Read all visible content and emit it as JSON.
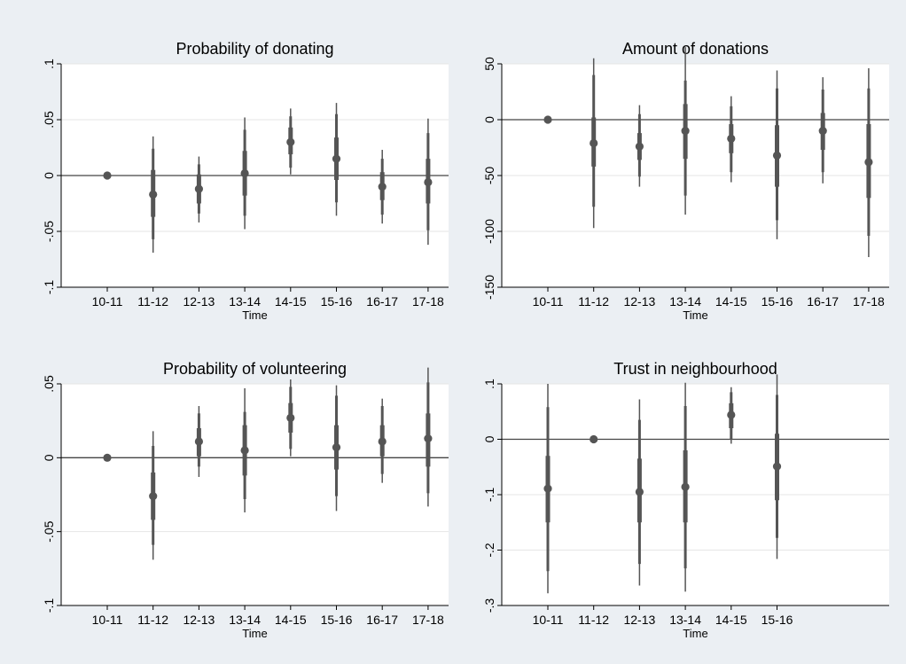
{
  "chart_data": [
    {
      "type": "scatter",
      "title": "Probability of donating",
      "xlabel": "Time",
      "ylabel": "",
      "categories": [
        "10-11",
        "11-12",
        "12-13",
        "13-14",
        "14-15",
        "15-16",
        "16-17",
        "17-18"
      ],
      "ylim": [
        -0.1,
        0.1
      ],
      "yticks": [
        -0.1,
        -0.05,
        0,
        0.05,
        0.1
      ],
      "ytick_labels": [
        "-.1",
        "-.05",
        "0",
        ".05",
        ".1"
      ],
      "grid": true,
      "reference_line": 0,
      "points": [
        {
          "x": "10-11",
          "estimate": 0,
          "ci_inner": [
            0,
            0
          ],
          "ci_mid": [
            0,
            0
          ],
          "ci_outer": [
            0,
            0
          ]
        },
        {
          "x": "11-12",
          "estimate": -0.017,
          "ci_inner": [
            -0.037,
            0.005
          ],
          "ci_mid": [
            -0.057,
            0.024
          ],
          "ci_outer": [
            -0.069,
            0.035
          ]
        },
        {
          "x": "12-13",
          "estimate": -0.012,
          "ci_inner": [
            -0.025,
            0.001
          ],
          "ci_mid": [
            -0.034,
            0.01
          ],
          "ci_outer": [
            -0.042,
            0.017
          ]
        },
        {
          "x": "13-14",
          "estimate": 0.002,
          "ci_inner": [
            -0.018,
            0.022
          ],
          "ci_mid": [
            -0.036,
            0.041
          ],
          "ci_outer": [
            -0.048,
            0.052
          ]
        },
        {
          "x": "14-15",
          "estimate": 0.03,
          "ci_inner": [
            0.019,
            0.043
          ],
          "ci_mid": [
            0.007,
            0.053
          ],
          "ci_outer": [
            0.001,
            0.06
          ]
        },
        {
          "x": "15-16",
          "estimate": 0.015,
          "ci_inner": [
            -0.004,
            0.034
          ],
          "ci_mid": [
            -0.024,
            0.055
          ],
          "ci_outer": [
            -0.036,
            0.065
          ]
        },
        {
          "x": "16-17",
          "estimate": -0.01,
          "ci_inner": [
            -0.022,
            0.003
          ],
          "ci_mid": [
            -0.035,
            0.015
          ],
          "ci_outer": [
            -0.043,
            0.023
          ]
        },
        {
          "x": "17-18",
          "estimate": -0.006,
          "ci_inner": [
            -0.025,
            0.015
          ],
          "ci_mid": [
            -0.049,
            0.038
          ],
          "ci_outer": [
            -0.062,
            0.051
          ]
        }
      ]
    },
    {
      "type": "scatter",
      "title": "Amount of donations",
      "xlabel": "Time",
      "ylabel": "",
      "categories": [
        "10-11",
        "11-12",
        "12-13",
        "13-14",
        "14-15",
        "15-16",
        "16-17",
        "17-18"
      ],
      "ylim": [
        -150,
        50
      ],
      "yticks": [
        -150,
        -100,
        -50,
        0,
        50
      ],
      "ytick_labels": [
        "-150",
        "-100",
        "-50",
        "0",
        "50"
      ],
      "grid": true,
      "reference_line": 0,
      "points": [
        {
          "x": "10-11",
          "estimate": 0,
          "ci_inner": [
            0,
            0
          ],
          "ci_mid": [
            0,
            0
          ],
          "ci_outer": [
            0,
            0
          ]
        },
        {
          "x": "11-12",
          "estimate": -21,
          "ci_inner": [
            -42,
            2
          ],
          "ci_mid": [
            -78,
            40
          ],
          "ci_outer": [
            -97,
            55
          ]
        },
        {
          "x": "12-13",
          "estimate": -24,
          "ci_inner": [
            -36,
            -12
          ],
          "ci_mid": [
            -51,
            5
          ],
          "ci_outer": [
            -60,
            13
          ]
        },
        {
          "x": "13-14",
          "estimate": -10,
          "ci_inner": [
            -35,
            14
          ],
          "ci_mid": [
            -68,
            35
          ],
          "ci_outer": [
            -85,
            65
          ]
        },
        {
          "x": "14-15",
          "estimate": -17,
          "ci_inner": [
            -30,
            -4
          ],
          "ci_mid": [
            -47,
            12
          ],
          "ci_outer": [
            -56,
            21
          ]
        },
        {
          "x": "15-16",
          "estimate": -32,
          "ci_inner": [
            -60,
            -5
          ],
          "ci_mid": [
            -90,
            28
          ],
          "ci_outer": [
            -107,
            44
          ]
        },
        {
          "x": "16-17",
          "estimate": -10,
          "ci_inner": [
            -27,
            6
          ],
          "ci_mid": [
            -47,
            27
          ],
          "ci_outer": [
            -57,
            38
          ]
        },
        {
          "x": "17-18",
          "estimate": -38,
          "ci_inner": [
            -70,
            -4
          ],
          "ci_mid": [
            -104,
            28
          ],
          "ci_outer": [
            -123,
            46
          ]
        }
      ]
    },
    {
      "type": "scatter",
      "title": "Probability of volunteering",
      "xlabel": "Time",
      "ylabel": "",
      "categories": [
        "10-11",
        "11-12",
        "12-13",
        "13-14",
        "14-15",
        "15-16",
        "16-17",
        "17-18"
      ],
      "ylim": [
        -0.1,
        0.05
      ],
      "yticks": [
        -0.1,
        -0.05,
        0,
        0.05
      ],
      "ytick_labels": [
        "-.1",
        "-.05",
        "0",
        ".05"
      ],
      "grid": true,
      "reference_line": 0,
      "points": [
        {
          "x": "10-11",
          "estimate": 0,
          "ci_inner": [
            0,
            0
          ],
          "ci_mid": [
            0,
            0
          ],
          "ci_outer": [
            0,
            0
          ]
        },
        {
          "x": "11-12",
          "estimate": -0.026,
          "ci_inner": [
            -0.042,
            -0.01
          ],
          "ci_mid": [
            -0.059,
            0.008
          ],
          "ci_outer": [
            -0.069,
            0.018
          ]
        },
        {
          "x": "12-13",
          "estimate": 0.011,
          "ci_inner": [
            0.001,
            0.02
          ],
          "ci_mid": [
            -0.006,
            0.03
          ],
          "ci_outer": [
            -0.013,
            0.035
          ]
        },
        {
          "x": "13-14",
          "estimate": 0.005,
          "ci_inner": [
            -0.012,
            0.022
          ],
          "ci_mid": [
            -0.028,
            0.031
          ],
          "ci_outer": [
            -0.037,
            0.047
          ]
        },
        {
          "x": "14-15",
          "estimate": 0.027,
          "ci_inner": [
            0.017,
            0.037
          ],
          "ci_mid": [
            0.006,
            0.048
          ],
          "ci_outer": [
            0.001,
            0.053
          ]
        },
        {
          "x": "15-16",
          "estimate": 0.007,
          "ci_inner": [
            -0.008,
            0.022
          ],
          "ci_mid": [
            -0.026,
            0.042
          ],
          "ci_outer": [
            -0.036,
            0.049
          ]
        },
        {
          "x": "16-17",
          "estimate": 0.011,
          "ci_inner": [
            0.001,
            0.022
          ],
          "ci_mid": [
            -0.011,
            0.035
          ],
          "ci_outer": [
            -0.017,
            0.04
          ]
        },
        {
          "x": "17-18",
          "estimate": 0.013,
          "ci_inner": [
            -0.006,
            0.03
          ],
          "ci_mid": [
            -0.024,
            0.051
          ],
          "ci_outer": [
            -0.033,
            0.061
          ]
        }
      ]
    },
    {
      "type": "scatter",
      "title": "Trust in neighbourhood",
      "xlabel": "Time",
      "ylabel": "",
      "categories": [
        "10-11",
        "11-12",
        "12-13",
        "13-14",
        "14-15",
        "15-16"
      ],
      "xslots": 8,
      "ylim": [
        -0.3,
        0.1
      ],
      "yticks": [
        -0.3,
        -0.2,
        -0.1,
        0,
        0.1
      ],
      "ytick_labels": [
        "-.3",
        "-.2",
        "-.1",
        "0",
        ".1"
      ],
      "grid": true,
      "reference_line": 0,
      "points": [
        {
          "x": "10-11",
          "estimate": -0.089,
          "ci_inner": [
            -0.15,
            -0.03
          ],
          "ci_mid": [
            -0.238,
            0.058
          ],
          "ci_outer": [
            -0.278,
            0.1
          ]
        },
        {
          "x": "11-12",
          "estimate": 0,
          "ci_inner": [
            0,
            0
          ],
          "ci_mid": [
            0,
            0
          ],
          "ci_outer": [
            0,
            0
          ]
        },
        {
          "x": "12-13",
          "estimate": -0.095,
          "ci_inner": [
            -0.15,
            -0.035
          ],
          "ci_mid": [
            -0.225,
            0.035
          ],
          "ci_outer": [
            -0.264,
            0.072
          ]
        },
        {
          "x": "13-14",
          "estimate": -0.086,
          "ci_inner": [
            -0.15,
            -0.02
          ],
          "ci_mid": [
            -0.233,
            0.06
          ],
          "ci_outer": [
            -0.275,
            0.102
          ]
        },
        {
          "x": "14-15",
          "estimate": 0.044,
          "ci_inner": [
            0.02,
            0.065
          ],
          "ci_mid": [
            0.0,
            0.085
          ],
          "ci_outer": [
            -0.008,
            0.094
          ]
        },
        {
          "x": "15-16",
          "estimate": -0.049,
          "ci_inner": [
            -0.11,
            0.01
          ],
          "ci_mid": [
            -0.178,
            0.08
          ],
          "ci_outer": [
            -0.216,
            0.117
          ]
        }
      ]
    }
  ],
  "colors": {
    "background": "#ebeff3",
    "plot_area": "#ffffff",
    "marker": "#555555",
    "ci_line": "#555555",
    "grid": "#e6e6e6",
    "reference_line": "#444444",
    "axis": "#000000"
  }
}
